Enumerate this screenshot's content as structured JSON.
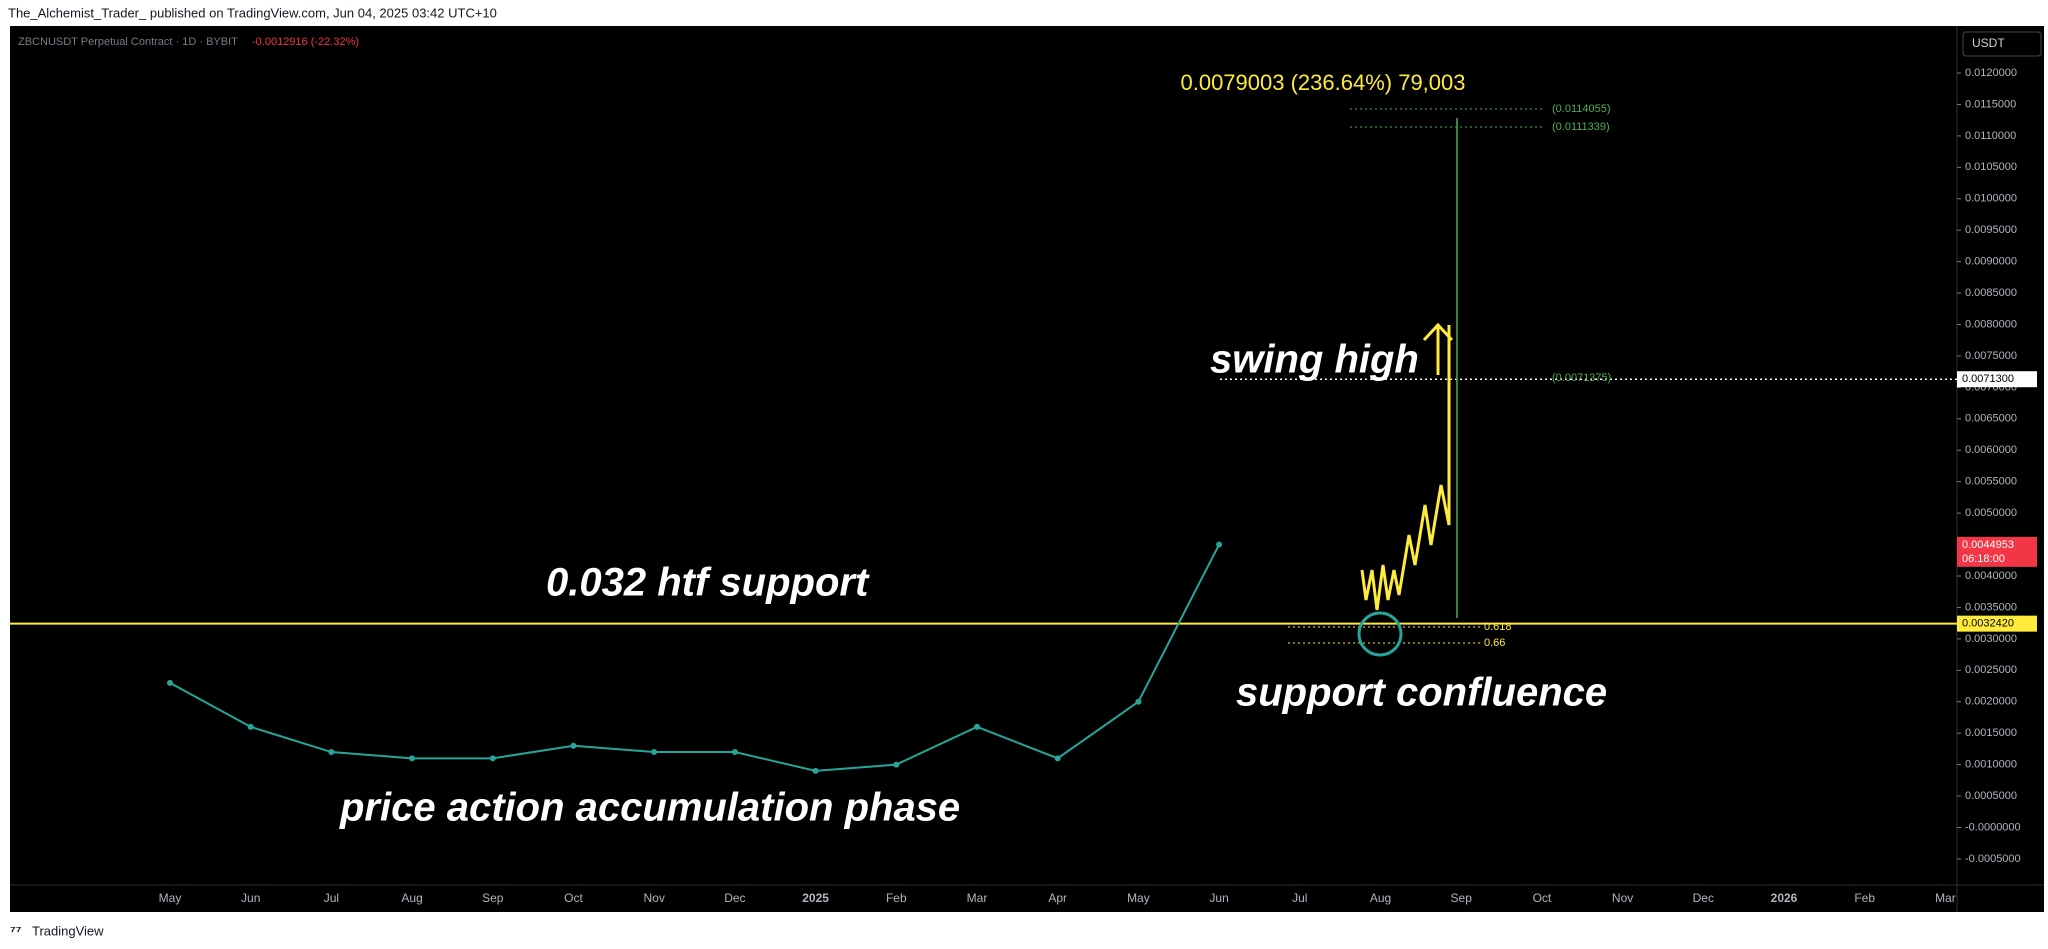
{
  "header": {
    "author": "The_Alchemist_Trader_ published on TradingView.com, Jun 04, 2025 03:42 UTC+10",
    "footer": "TradingView"
  },
  "chart_data": {
    "type": "line",
    "symbol": "ZBCNUSDT Perpetual Contract · 1D · BYBIT",
    "change": "-0.0012916 (-22.32%)",
    "currency": "USDT",
    "categories": [
      "May",
      "Jun",
      "Jul",
      "Aug",
      "Sep",
      "Oct",
      "Nov",
      "Dec",
      "2025",
      "Feb",
      "Mar",
      "Apr",
      "May",
      "Jun",
      "Jul",
      "Aug",
      "Sep",
      "Oct",
      "Nov",
      "Dec",
      "2026",
      "Feb",
      "Mar"
    ],
    "series": [
      {
        "name": "ZBCNUSDT",
        "color": "#26a69a",
        "values": [
          0.0023,
          0.0016,
          0.0012,
          0.0011,
          0.0011,
          0.0013,
          0.0012,
          0.0012,
          0.0009,
          0.001,
          0.0016,
          0.0011,
          0.002,
          0.0045,
          null,
          null,
          null,
          null,
          null,
          null,
          null,
          null,
          null
        ]
      }
    ],
    "ylim": [
      -0.000915,
      0.012748
    ],
    "yticks": [
      {
        "value": 0.012,
        "label": "0.0120000"
      },
      {
        "value": 0.0115,
        "label": "0.0115000"
      },
      {
        "value": 0.011,
        "label": "0.0110000"
      },
      {
        "value": 0.0105,
        "label": "0.0105000"
      },
      {
        "value": 0.01,
        "label": "0.0100000"
      },
      {
        "value": 0.0095,
        "label": "0.0095000"
      },
      {
        "value": 0.009,
        "label": "0.0090000"
      },
      {
        "value": 0.0085,
        "label": "0.0085000"
      },
      {
        "value": 0.008,
        "label": "0.0080000"
      },
      {
        "value": 0.0075,
        "label": "0.0075000"
      },
      {
        "value": 0.007,
        "label": "0.0070000"
      },
      {
        "value": 0.0065,
        "label": "0.0065000"
      },
      {
        "value": 0.006,
        "label": "0.0060000"
      },
      {
        "value": 0.0055,
        "label": "0.0055000"
      },
      {
        "value": 0.005,
        "label": "0.0050000"
      },
      {
        "value": 0.0045,
        "label": "0.0045000"
      },
      {
        "value": 0.004,
        "label": "0.0040000"
      },
      {
        "value": 0.0035,
        "label": "0.0035000"
      },
      {
        "value": 0.003,
        "label": "0.0030000"
      },
      {
        "value": 0.0025,
        "label": "0.0025000"
      },
      {
        "value": 0.002,
        "label": "0.0020000"
      },
      {
        "value": 0.0015,
        "label": "0.0015000"
      },
      {
        "value": 0.001,
        "label": "0.0010000"
      },
      {
        "value": 0.0005,
        "label": "0.0005000"
      },
      {
        "value": 0,
        "label": "-0.0000000"
      },
      {
        "value": -0.0005,
        "label": "-0.0005000"
      }
    ],
    "levels": [
      {
        "value": 0.00713,
        "label": "0.0071300",
        "color": "#ffffff"
      },
      {
        "value": 0.0044953,
        "label": "0.0044953",
        "countdown": "06:18:00",
        "color": "#f23645"
      },
      {
        "value": 0.003242,
        "label": "0.0032420",
        "color": "#ffeb3b"
      }
    ],
    "annotations": {
      "measure": "0.0079003 (236.64%) 79,003",
      "target_high": "(0.0114055)",
      "target_low": "(0.0111339)",
      "swing_level": "(0.0071375)",
      "fib_618": "0.618",
      "fib_66": "0.66",
      "swing_high": "swing high",
      "support": "0.032 htf support",
      "confluence": "support confluence",
      "accumulation": "price action accumulation phase"
    }
  }
}
